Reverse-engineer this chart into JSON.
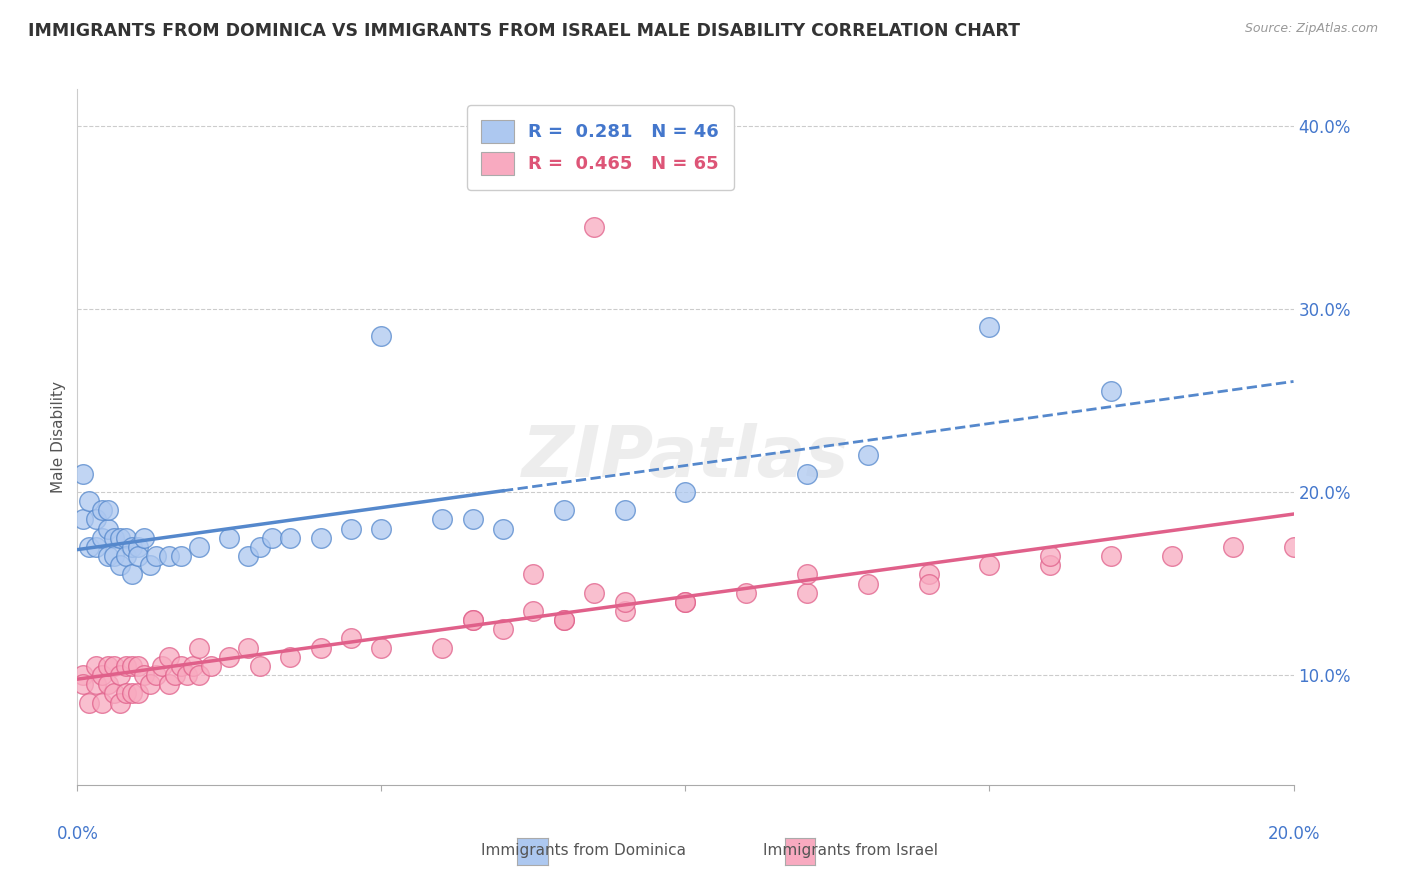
{
  "title": "IMMIGRANTS FROM DOMINICA VS IMMIGRANTS FROM ISRAEL MALE DISABILITY CORRELATION CHART",
  "source": "Source: ZipAtlas.com",
  "ylabel": "Male Disability",
  "ytick_values": [
    0.1,
    0.2,
    0.3,
    0.4
  ],
  "xlim": [
    0.0,
    0.2
  ],
  "ylim": [
    0.04,
    0.42
  ],
  "dominica_R": 0.281,
  "dominica_N": 46,
  "israel_R": 0.465,
  "israel_N": 65,
  "dominica_color": "#adc8f0",
  "israel_color": "#f8aac0",
  "dominica_line_color": "#5588cc",
  "israel_line_color": "#e0608a",
  "background_color": "#ffffff",
  "dominica_x": [
    0.001,
    0.001,
    0.002,
    0.002,
    0.003,
    0.003,
    0.004,
    0.004,
    0.005,
    0.005,
    0.005,
    0.006,
    0.006,
    0.007,
    0.007,
    0.008,
    0.008,
    0.009,
    0.009,
    0.01,
    0.01,
    0.011,
    0.012,
    0.013,
    0.015,
    0.017,
    0.02,
    0.025,
    0.028,
    0.03,
    0.032,
    0.035,
    0.04,
    0.045,
    0.05,
    0.06,
    0.065,
    0.07,
    0.08,
    0.09,
    0.1,
    0.12,
    0.13,
    0.15,
    0.17,
    0.05
  ],
  "dominica_y": [
    0.21,
    0.185,
    0.195,
    0.17,
    0.185,
    0.17,
    0.175,
    0.19,
    0.165,
    0.18,
    0.19,
    0.175,
    0.165,
    0.175,
    0.16,
    0.175,
    0.165,
    0.17,
    0.155,
    0.17,
    0.165,
    0.175,
    0.16,
    0.165,
    0.165,
    0.165,
    0.17,
    0.175,
    0.165,
    0.17,
    0.175,
    0.175,
    0.175,
    0.18,
    0.18,
    0.185,
    0.185,
    0.18,
    0.19,
    0.19,
    0.2,
    0.21,
    0.22,
    0.29,
    0.255,
    0.285
  ],
  "israel_x": [
    0.001,
    0.001,
    0.002,
    0.003,
    0.003,
    0.004,
    0.004,
    0.005,
    0.005,
    0.006,
    0.006,
    0.007,
    0.007,
    0.008,
    0.008,
    0.009,
    0.009,
    0.01,
    0.01,
    0.011,
    0.012,
    0.013,
    0.014,
    0.015,
    0.015,
    0.016,
    0.017,
    0.018,
    0.019,
    0.02,
    0.02,
    0.022,
    0.025,
    0.028,
    0.03,
    0.035,
    0.04,
    0.045,
    0.05,
    0.06,
    0.065,
    0.07,
    0.075,
    0.08,
    0.09,
    0.1,
    0.11,
    0.12,
    0.13,
    0.14,
    0.15,
    0.16,
    0.17,
    0.18,
    0.19,
    0.2,
    0.12,
    0.14,
    0.16,
    0.08,
    0.09,
    0.1,
    0.065,
    0.075,
    0.085
  ],
  "israel_y": [
    0.1,
    0.095,
    0.085,
    0.095,
    0.105,
    0.085,
    0.1,
    0.095,
    0.105,
    0.09,
    0.105,
    0.085,
    0.1,
    0.09,
    0.105,
    0.09,
    0.105,
    0.09,
    0.105,
    0.1,
    0.095,
    0.1,
    0.105,
    0.095,
    0.11,
    0.1,
    0.105,
    0.1,
    0.105,
    0.1,
    0.115,
    0.105,
    0.11,
    0.115,
    0.105,
    0.11,
    0.115,
    0.12,
    0.115,
    0.115,
    0.13,
    0.125,
    0.135,
    0.13,
    0.135,
    0.14,
    0.145,
    0.145,
    0.15,
    0.155,
    0.16,
    0.16,
    0.165,
    0.165,
    0.17,
    0.17,
    0.155,
    0.15,
    0.165,
    0.13,
    0.14,
    0.14,
    0.13,
    0.155,
    0.145
  ],
  "israel_outlier_x": [
    0.085
  ],
  "israel_outlier_y": [
    0.345
  ]
}
